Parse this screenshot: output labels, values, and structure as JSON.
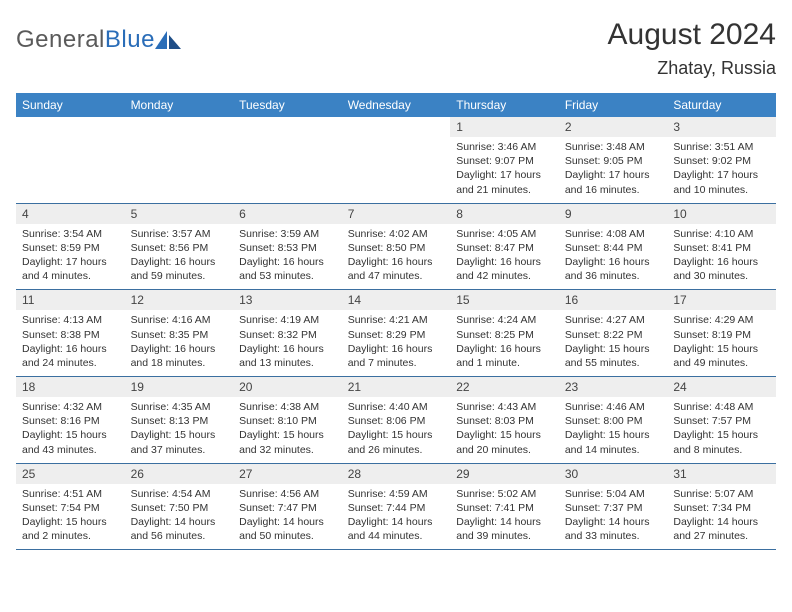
{
  "logo": {
    "text1": "General",
    "text2": "Blue"
  },
  "title": "August 2024",
  "location": "Zhatay, Russia",
  "colors": {
    "header_bg": "#3b82c4",
    "header_text": "#ffffff",
    "daynum_bg": "#eeeeee",
    "border": "#3b6fa0",
    "logo_gray": "#5a5a5a",
    "logo_blue": "#2a6db8"
  },
  "days_of_week": [
    "Sunday",
    "Monday",
    "Tuesday",
    "Wednesday",
    "Thursday",
    "Friday",
    "Saturday"
  ],
  "weeks": [
    [
      {
        "n": "",
        "lines": []
      },
      {
        "n": "",
        "lines": []
      },
      {
        "n": "",
        "lines": []
      },
      {
        "n": "",
        "lines": []
      },
      {
        "n": "1",
        "lines": [
          "Sunrise: 3:46 AM",
          "Sunset: 9:07 PM",
          "Daylight: 17 hours",
          "and 21 minutes."
        ]
      },
      {
        "n": "2",
        "lines": [
          "Sunrise: 3:48 AM",
          "Sunset: 9:05 PM",
          "Daylight: 17 hours",
          "and 16 minutes."
        ]
      },
      {
        "n": "3",
        "lines": [
          "Sunrise: 3:51 AM",
          "Sunset: 9:02 PM",
          "Daylight: 17 hours",
          "and 10 minutes."
        ]
      }
    ],
    [
      {
        "n": "4",
        "lines": [
          "Sunrise: 3:54 AM",
          "Sunset: 8:59 PM",
          "Daylight: 17 hours",
          "and 4 minutes."
        ]
      },
      {
        "n": "5",
        "lines": [
          "Sunrise: 3:57 AM",
          "Sunset: 8:56 PM",
          "Daylight: 16 hours",
          "and 59 minutes."
        ]
      },
      {
        "n": "6",
        "lines": [
          "Sunrise: 3:59 AM",
          "Sunset: 8:53 PM",
          "Daylight: 16 hours",
          "and 53 minutes."
        ]
      },
      {
        "n": "7",
        "lines": [
          "Sunrise: 4:02 AM",
          "Sunset: 8:50 PM",
          "Daylight: 16 hours",
          "and 47 minutes."
        ]
      },
      {
        "n": "8",
        "lines": [
          "Sunrise: 4:05 AM",
          "Sunset: 8:47 PM",
          "Daylight: 16 hours",
          "and 42 minutes."
        ]
      },
      {
        "n": "9",
        "lines": [
          "Sunrise: 4:08 AM",
          "Sunset: 8:44 PM",
          "Daylight: 16 hours",
          "and 36 minutes."
        ]
      },
      {
        "n": "10",
        "lines": [
          "Sunrise: 4:10 AM",
          "Sunset: 8:41 PM",
          "Daylight: 16 hours",
          "and 30 minutes."
        ]
      }
    ],
    [
      {
        "n": "11",
        "lines": [
          "Sunrise: 4:13 AM",
          "Sunset: 8:38 PM",
          "Daylight: 16 hours",
          "and 24 minutes."
        ]
      },
      {
        "n": "12",
        "lines": [
          "Sunrise: 4:16 AM",
          "Sunset: 8:35 PM",
          "Daylight: 16 hours",
          "and 18 minutes."
        ]
      },
      {
        "n": "13",
        "lines": [
          "Sunrise: 4:19 AM",
          "Sunset: 8:32 PM",
          "Daylight: 16 hours",
          "and 13 minutes."
        ]
      },
      {
        "n": "14",
        "lines": [
          "Sunrise: 4:21 AM",
          "Sunset: 8:29 PM",
          "Daylight: 16 hours",
          "and 7 minutes."
        ]
      },
      {
        "n": "15",
        "lines": [
          "Sunrise: 4:24 AM",
          "Sunset: 8:25 PM",
          "Daylight: 16 hours",
          "and 1 minute."
        ]
      },
      {
        "n": "16",
        "lines": [
          "Sunrise: 4:27 AM",
          "Sunset: 8:22 PM",
          "Daylight: 15 hours",
          "and 55 minutes."
        ]
      },
      {
        "n": "17",
        "lines": [
          "Sunrise: 4:29 AM",
          "Sunset: 8:19 PM",
          "Daylight: 15 hours",
          "and 49 minutes."
        ]
      }
    ],
    [
      {
        "n": "18",
        "lines": [
          "Sunrise: 4:32 AM",
          "Sunset: 8:16 PM",
          "Daylight: 15 hours",
          "and 43 minutes."
        ]
      },
      {
        "n": "19",
        "lines": [
          "Sunrise: 4:35 AM",
          "Sunset: 8:13 PM",
          "Daylight: 15 hours",
          "and 37 minutes."
        ]
      },
      {
        "n": "20",
        "lines": [
          "Sunrise: 4:38 AM",
          "Sunset: 8:10 PM",
          "Daylight: 15 hours",
          "and 32 minutes."
        ]
      },
      {
        "n": "21",
        "lines": [
          "Sunrise: 4:40 AM",
          "Sunset: 8:06 PM",
          "Daylight: 15 hours",
          "and 26 minutes."
        ]
      },
      {
        "n": "22",
        "lines": [
          "Sunrise: 4:43 AM",
          "Sunset: 8:03 PM",
          "Daylight: 15 hours",
          "and 20 minutes."
        ]
      },
      {
        "n": "23",
        "lines": [
          "Sunrise: 4:46 AM",
          "Sunset: 8:00 PM",
          "Daylight: 15 hours",
          "and 14 minutes."
        ]
      },
      {
        "n": "24",
        "lines": [
          "Sunrise: 4:48 AM",
          "Sunset: 7:57 PM",
          "Daylight: 15 hours",
          "and 8 minutes."
        ]
      }
    ],
    [
      {
        "n": "25",
        "lines": [
          "Sunrise: 4:51 AM",
          "Sunset: 7:54 PM",
          "Daylight: 15 hours",
          "and 2 minutes."
        ]
      },
      {
        "n": "26",
        "lines": [
          "Sunrise: 4:54 AM",
          "Sunset: 7:50 PM",
          "Daylight: 14 hours",
          "and 56 minutes."
        ]
      },
      {
        "n": "27",
        "lines": [
          "Sunrise: 4:56 AM",
          "Sunset: 7:47 PM",
          "Daylight: 14 hours",
          "and 50 minutes."
        ]
      },
      {
        "n": "28",
        "lines": [
          "Sunrise: 4:59 AM",
          "Sunset: 7:44 PM",
          "Daylight: 14 hours",
          "and 44 minutes."
        ]
      },
      {
        "n": "29",
        "lines": [
          "Sunrise: 5:02 AM",
          "Sunset: 7:41 PM",
          "Daylight: 14 hours",
          "and 39 minutes."
        ]
      },
      {
        "n": "30",
        "lines": [
          "Sunrise: 5:04 AM",
          "Sunset: 7:37 PM",
          "Daylight: 14 hours",
          "and 33 minutes."
        ]
      },
      {
        "n": "31",
        "lines": [
          "Sunrise: 5:07 AM",
          "Sunset: 7:34 PM",
          "Daylight: 14 hours",
          "and 27 minutes."
        ]
      }
    ]
  ]
}
